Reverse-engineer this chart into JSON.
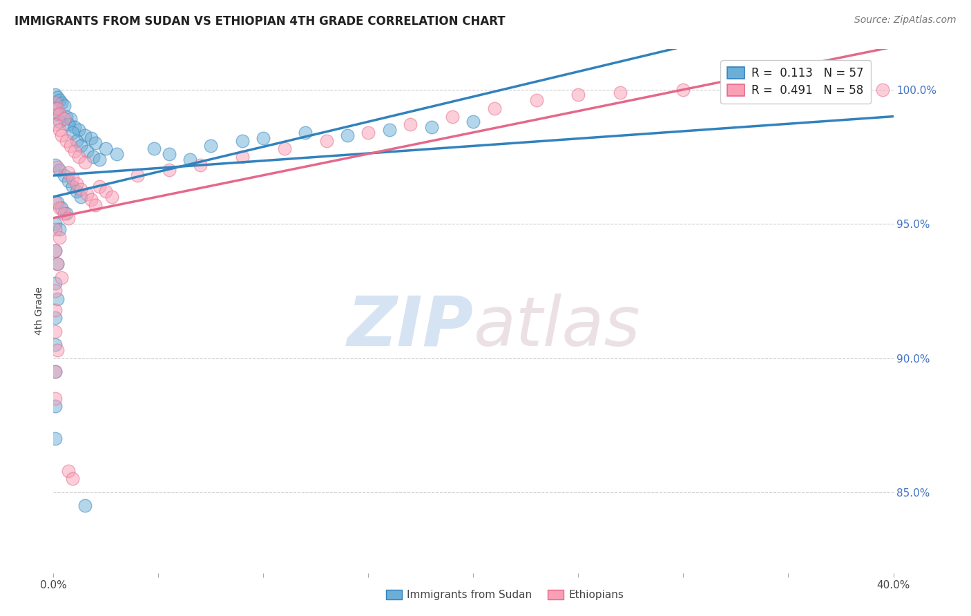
{
  "title": "IMMIGRANTS FROM SUDAN VS ETHIOPIAN 4TH GRADE CORRELATION CHART",
  "source": "Source: ZipAtlas.com",
  "ylabel": "4th Grade",
  "ylabel_right_labels": [
    "100.0%",
    "95.0%",
    "90.0%",
    "85.0%"
  ],
  "ylabel_right_values": [
    1.0,
    0.95,
    0.9,
    0.85
  ],
  "legend_label1": "Immigrants from Sudan",
  "legend_label2": "Ethiopians",
  "R1": 0.113,
  "N1": 57,
  "R2": 0.491,
  "N2": 58,
  "color_blue": "#6baed6",
  "color_pink": "#fa9fb5",
  "color_blue_line": "#3182bd",
  "color_pink_line": "#e5688a",
  "x_min": 0.0,
  "x_max": 0.4,
  "y_min": 0.82,
  "y_max": 1.015,
  "watermark_zip": "ZIP",
  "watermark_atlas": "atlas",
  "sudan_points": [
    [
      0.001,
      0.998
    ],
    [
      0.002,
      0.997
    ],
    [
      0.003,
      0.996
    ],
    [
      0.004,
      0.995
    ],
    [
      0.005,
      0.994
    ],
    [
      0.001,
      0.993
    ],
    [
      0.002,
      0.991
    ],
    [
      0.006,
      0.99
    ],
    [
      0.008,
      0.989
    ],
    [
      0.003,
      0.988
    ],
    [
      0.007,
      0.987
    ],
    [
      0.01,
      0.986
    ],
    [
      0.012,
      0.985
    ],
    [
      0.009,
      0.984
    ],
    [
      0.015,
      0.983
    ],
    [
      0.018,
      0.982
    ],
    [
      0.011,
      0.981
    ],
    [
      0.02,
      0.98
    ],
    [
      0.013,
      0.979
    ],
    [
      0.025,
      0.978
    ],
    [
      0.016,
      0.977
    ],
    [
      0.03,
      0.976
    ],
    [
      0.019,
      0.975
    ],
    [
      0.022,
      0.974
    ],
    [
      0.001,
      0.972
    ],
    [
      0.003,
      0.97
    ],
    [
      0.005,
      0.968
    ],
    [
      0.007,
      0.966
    ],
    [
      0.009,
      0.964
    ],
    [
      0.011,
      0.962
    ],
    [
      0.013,
      0.96
    ],
    [
      0.002,
      0.958
    ],
    [
      0.004,
      0.956
    ],
    [
      0.006,
      0.954
    ],
    [
      0.001,
      0.95
    ],
    [
      0.003,
      0.948
    ],
    [
      0.001,
      0.94
    ],
    [
      0.002,
      0.935
    ],
    [
      0.001,
      0.928
    ],
    [
      0.002,
      0.922
    ],
    [
      0.001,
      0.915
    ],
    [
      0.001,
      0.905
    ],
    [
      0.001,
      0.895
    ],
    [
      0.001,
      0.882
    ],
    [
      0.001,
      0.87
    ],
    [
      0.048,
      0.978
    ],
    [
      0.055,
      0.976
    ],
    [
      0.065,
      0.974
    ],
    [
      0.075,
      0.979
    ],
    [
      0.09,
      0.981
    ],
    [
      0.1,
      0.982
    ],
    [
      0.12,
      0.984
    ],
    [
      0.14,
      0.983
    ],
    [
      0.16,
      0.985
    ],
    [
      0.18,
      0.986
    ],
    [
      0.2,
      0.988
    ],
    [
      0.015,
      0.845
    ]
  ],
  "ethiopian_points": [
    [
      0.001,
      0.995
    ],
    [
      0.002,
      0.993
    ],
    [
      0.003,
      0.991
    ],
    [
      0.005,
      0.989
    ],
    [
      0.001,
      0.987
    ],
    [
      0.003,
      0.985
    ],
    [
      0.004,
      0.983
    ],
    [
      0.006,
      0.981
    ],
    [
      0.008,
      0.979
    ],
    [
      0.01,
      0.977
    ],
    [
      0.012,
      0.975
    ],
    [
      0.015,
      0.973
    ],
    [
      0.002,
      0.971
    ],
    [
      0.007,
      0.969
    ],
    [
      0.009,
      0.967
    ],
    [
      0.011,
      0.965
    ],
    [
      0.013,
      0.963
    ],
    [
      0.016,
      0.961
    ],
    [
      0.018,
      0.959
    ],
    [
      0.02,
      0.957
    ],
    [
      0.022,
      0.964
    ],
    [
      0.025,
      0.962
    ],
    [
      0.028,
      0.96
    ],
    [
      0.001,
      0.958
    ],
    [
      0.003,
      0.956
    ],
    [
      0.005,
      0.954
    ],
    [
      0.007,
      0.952
    ],
    [
      0.001,
      0.948
    ],
    [
      0.003,
      0.945
    ],
    [
      0.001,
      0.94
    ],
    [
      0.002,
      0.935
    ],
    [
      0.004,
      0.93
    ],
    [
      0.001,
      0.925
    ],
    [
      0.001,
      0.918
    ],
    [
      0.001,
      0.91
    ],
    [
      0.002,
      0.903
    ],
    [
      0.001,
      0.895
    ],
    [
      0.001,
      0.885
    ],
    [
      0.007,
      0.858
    ],
    [
      0.009,
      0.855
    ],
    [
      0.04,
      0.968
    ],
    [
      0.055,
      0.97
    ],
    [
      0.07,
      0.972
    ],
    [
      0.09,
      0.975
    ],
    [
      0.11,
      0.978
    ],
    [
      0.13,
      0.981
    ],
    [
      0.15,
      0.984
    ],
    [
      0.17,
      0.987
    ],
    [
      0.19,
      0.99
    ],
    [
      0.21,
      0.993
    ],
    [
      0.23,
      0.996
    ],
    [
      0.25,
      0.998
    ],
    [
      0.27,
      0.999
    ],
    [
      0.3,
      1.0
    ],
    [
      0.33,
      1.0
    ],
    [
      0.35,
      1.0
    ],
    [
      0.375,
      1.0
    ],
    [
      0.395,
      1.0
    ]
  ]
}
